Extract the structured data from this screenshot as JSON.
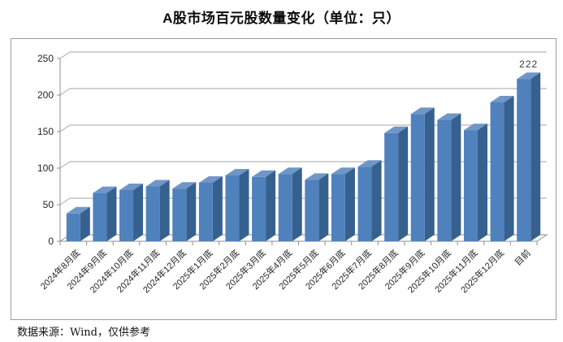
{
  "title": "A股市场百元股数量变化（单位：只）",
  "source_note": "数据来源：Wind，仅供参考",
  "chart_data": {
    "type": "bar",
    "style": "3d-column",
    "title": "A股市场百元股数量变化（单位：只）",
    "unit": "只",
    "categories": [
      "2024年8月底",
      "2024年9月底",
      "2024年10月底",
      "2024年11月底",
      "2024年12月底",
      "2025年1月底",
      "2025年2月底",
      "2025年3月底",
      "2025年4月底",
      "2025年5月底",
      "2025年6月底",
      "2025年7月底",
      "2025年8月底",
      "2025年9月底",
      "2025年10月底",
      "2025年11月底",
      "2025年12月底",
      "目前"
    ],
    "values": [
      38,
      66,
      70,
      75,
      72,
      80,
      90,
      88,
      92,
      84,
      92,
      102,
      148,
      174,
      166,
      152,
      190,
      222
    ],
    "data_label": {
      "category": "目前",
      "text": "222"
    },
    "ylim": [
      0,
      250
    ],
    "yticks": [
      0,
      50,
      100,
      150,
      200,
      250
    ],
    "grid": true,
    "legend": false,
    "xlabel": "",
    "ylabel": "",
    "x_label_rotation_deg": 45,
    "colors": {
      "bar_front": "#4f81bd",
      "bar_side": "#36618f",
      "bar_top": "#7096c8",
      "gridline": "#a6a6a6",
      "axis": "#8f8f8f",
      "frame_border": "#9c9c9c",
      "text": "#262626",
      "data_label_text": "#3a3a3a",
      "background": "#ffffff"
    }
  }
}
